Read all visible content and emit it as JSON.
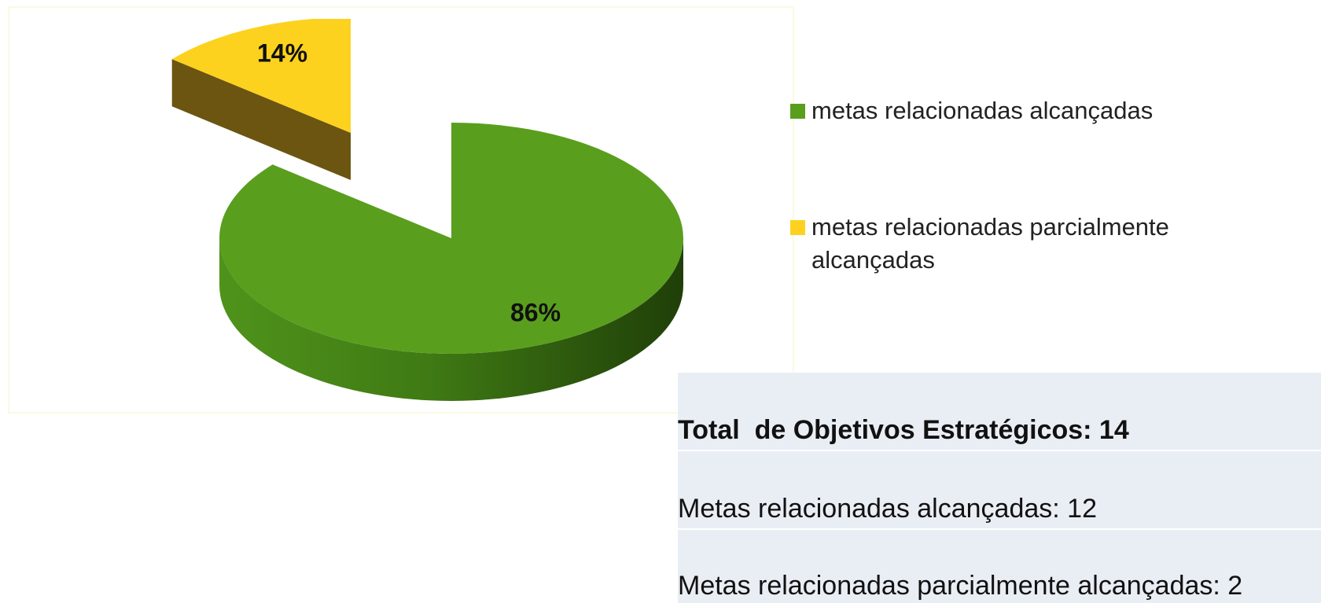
{
  "chart_data": {
    "type": "pie",
    "categories": [
      "metas relacionadas alcançadas",
      "metas relacionadas parcialmente alcançadas"
    ],
    "values": [
      86,
      14
    ],
    "value_labels": [
      "86%",
      "14%"
    ],
    "colors": [
      "#5a9e1e",
      "#fcd21f"
    ],
    "legend": "right"
  },
  "summary": {
    "title": "Total  de Objetivos Estratégicos: 14",
    "rows": [
      "Metas relacionadas alcançadas: 12",
      "Metas relacionadas parcialmente alcançadas: 2"
    ]
  }
}
